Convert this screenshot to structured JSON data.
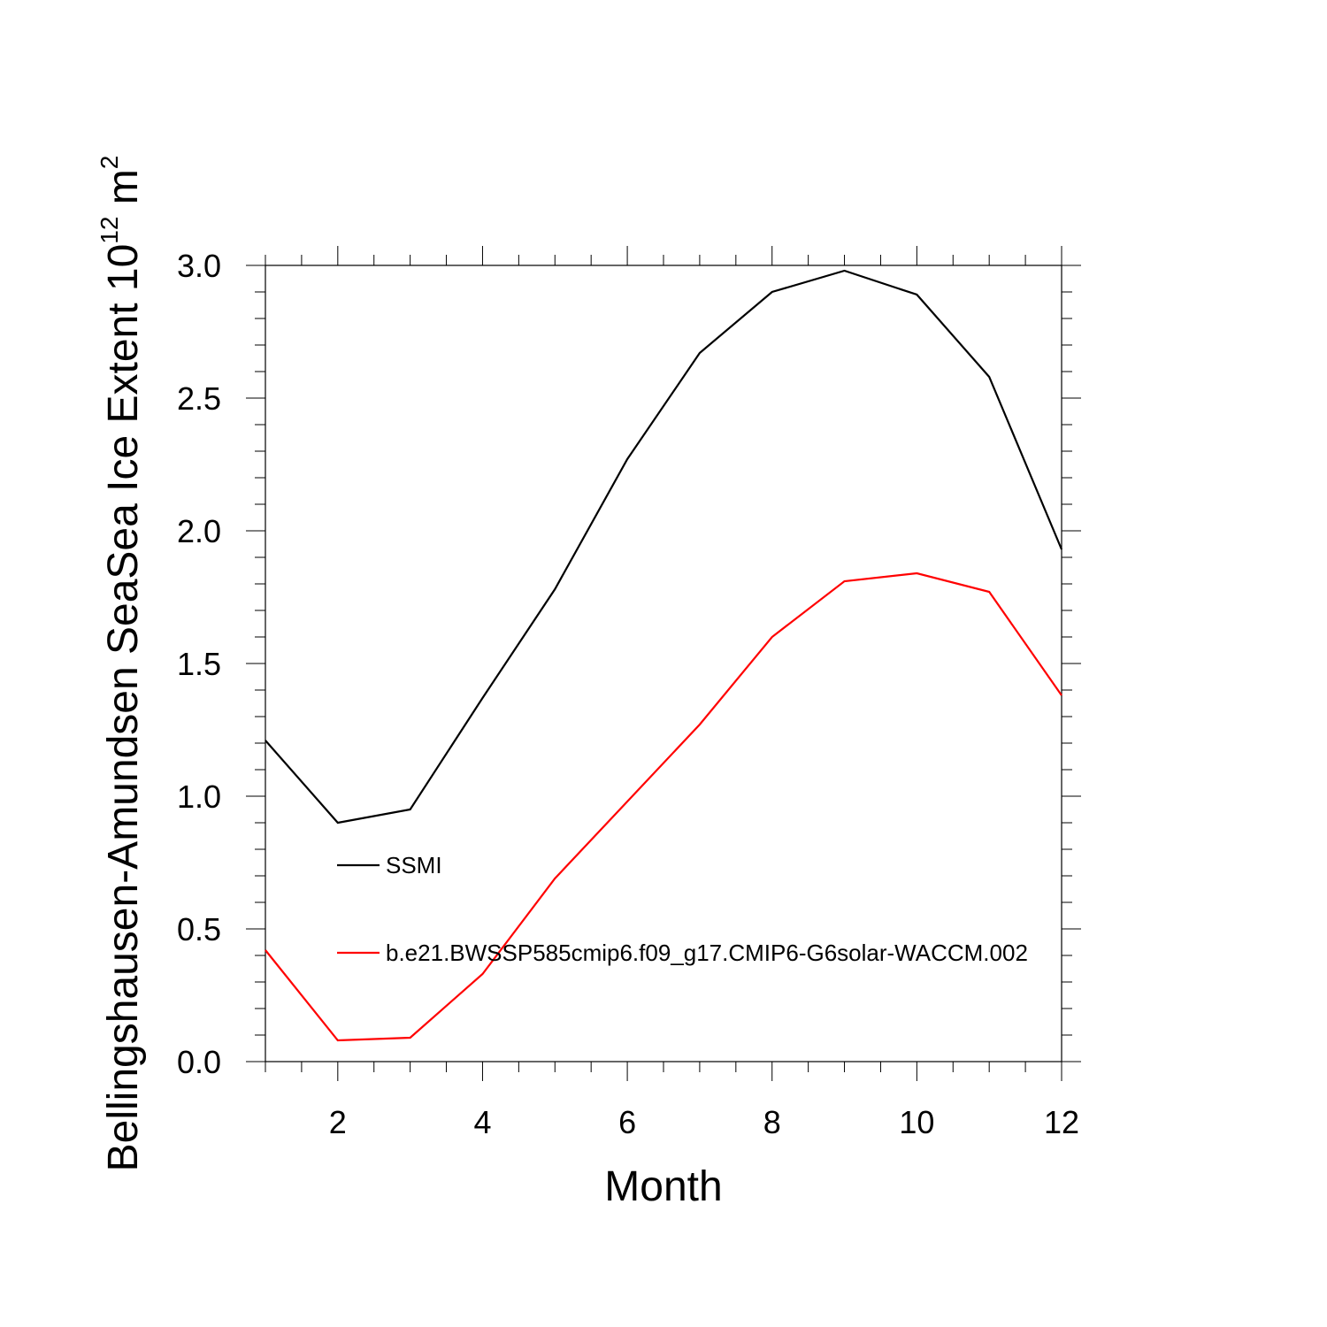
{
  "chart_data": {
    "type": "line",
    "xlabel": "Month",
    "ylabel_parts": {
      "prefix": "Bellingshausen-Amundsen SeaSea Ice Extent 10",
      "exponent": "12",
      "unit_base": " m",
      "unit_exponent": "2"
    },
    "xlim": [
      1,
      12
    ],
    "ylim": [
      0,
      3
    ],
    "x_ticks": [
      2,
      4,
      6,
      8,
      10,
      12
    ],
    "x_tick_labels": [
      "2",
      "4",
      "6",
      "8",
      "10",
      "12"
    ],
    "y_ticks": [
      0,
      0.5,
      1,
      1.5,
      2,
      2.5,
      3
    ],
    "y_tick_labels": [
      "0.0",
      "0.5",
      "1.0",
      "1.5",
      "2.0",
      "2.5",
      "3.0"
    ],
    "x": [
      1,
      2,
      3,
      4,
      5,
      6,
      7,
      8,
      9,
      10,
      11,
      12
    ],
    "series": [
      {
        "name": "SSMI",
        "color": "#000000",
        "values": [
          1.21,
          0.9,
          0.95,
          1.37,
          1.78,
          2.27,
          2.67,
          2.9,
          2.98,
          2.89,
          2.58,
          1.93
        ]
      },
      {
        "name": "b.e21.BWSSP585cmip6.f09_g17.CMIP6-G6solar-WACCM.002",
        "color": "#ff0000",
        "values": [
          0.42,
          0.08,
          0.09,
          0.33,
          0.69,
          0.98,
          1.27,
          1.6,
          1.81,
          1.84,
          1.77,
          1.38
        ]
      }
    ],
    "legend_placement": "inside lower-left",
    "grid": false
  }
}
